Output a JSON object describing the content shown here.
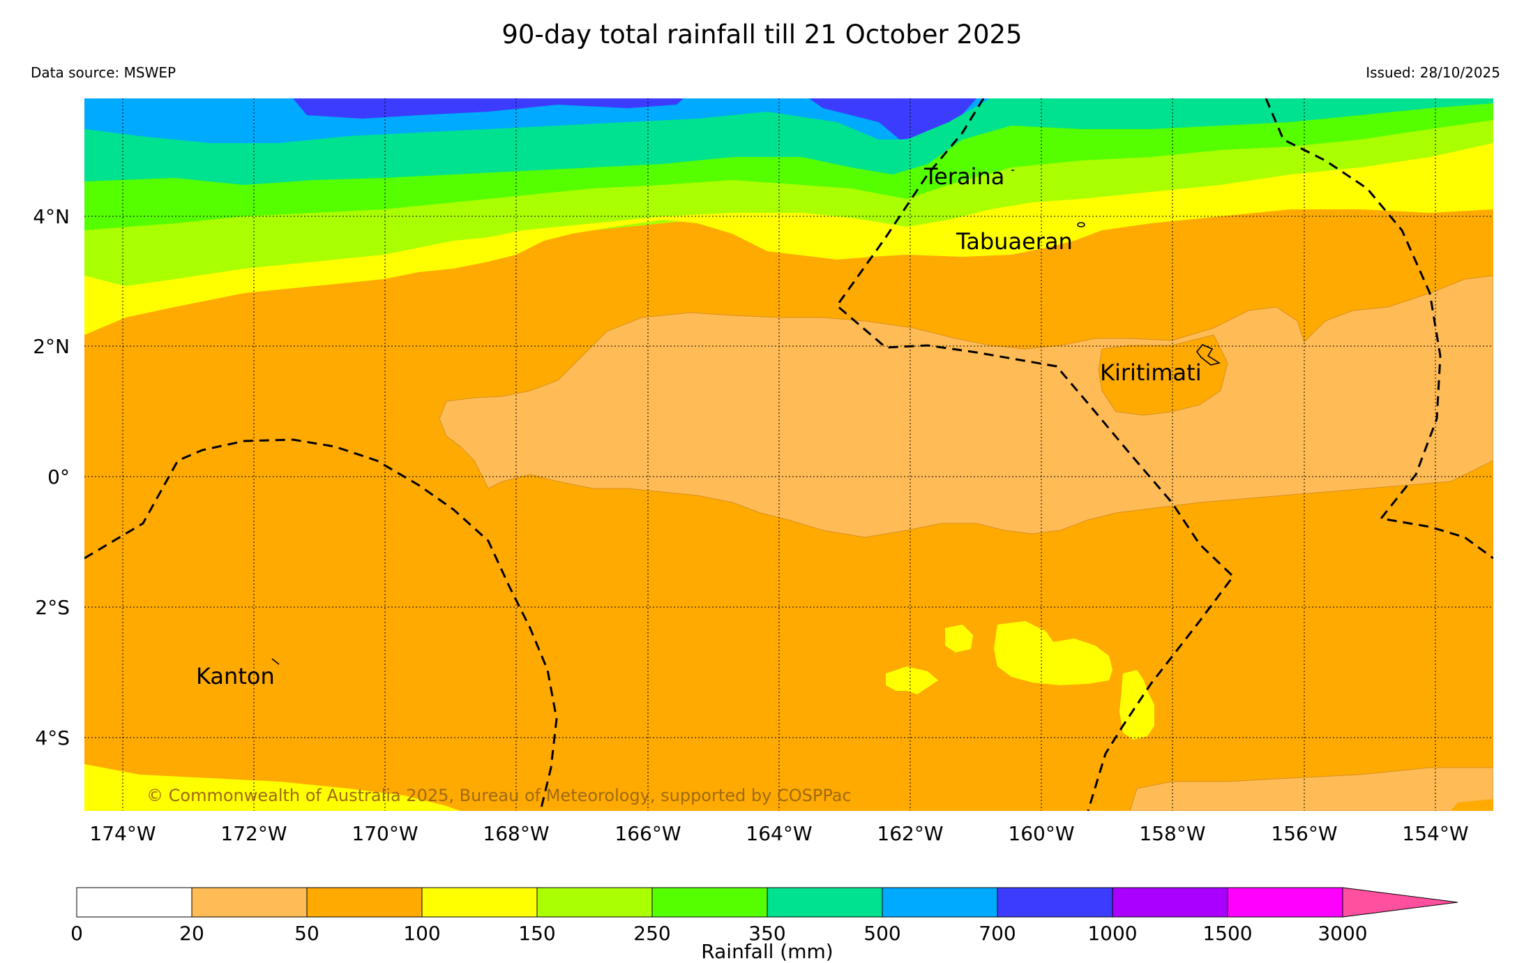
{
  "title": "90-day total rainfall till 21 October 2025",
  "source": "Data source: MSWEP",
  "issued": "Issued: 28/10/2025",
  "copyright": "© Commonwealth of Australia 2025, Bureau of Meteorology, supported by COSPPac",
  "places": {
    "teraina": "Teraina",
    "tabuaeran": "Tabuaeran",
    "kiritimati": "Kiritimati",
    "kanton": "Kanton"
  },
  "lon_labels": [
    "174°W",
    "172°W",
    "170°W",
    "168°W",
    "166°W",
    "164°W",
    "162°W",
    "160°W",
    "158°W",
    "156°W",
    "154°W"
  ],
  "lat_labels": [
    "4°N",
    "2°N",
    "0°",
    "2°S",
    "4°S"
  ],
  "colorbar": {
    "label": "Rainfall (mm)",
    "ticks": [
      "0",
      "20",
      "50",
      "100",
      "150",
      "250",
      "350",
      "500",
      "700",
      "1000",
      "1500",
      "3000"
    ],
    "colors": [
      "#ffffff",
      "#ffbb55",
      "#ffaa00",
      "#ffff00",
      "#aaff00",
      "#55ff00",
      "#00e28f",
      "#00aaff",
      "#3c3cff",
      "#aa00ff",
      "#ff00ff",
      "#ff50a0"
    ]
  }
}
